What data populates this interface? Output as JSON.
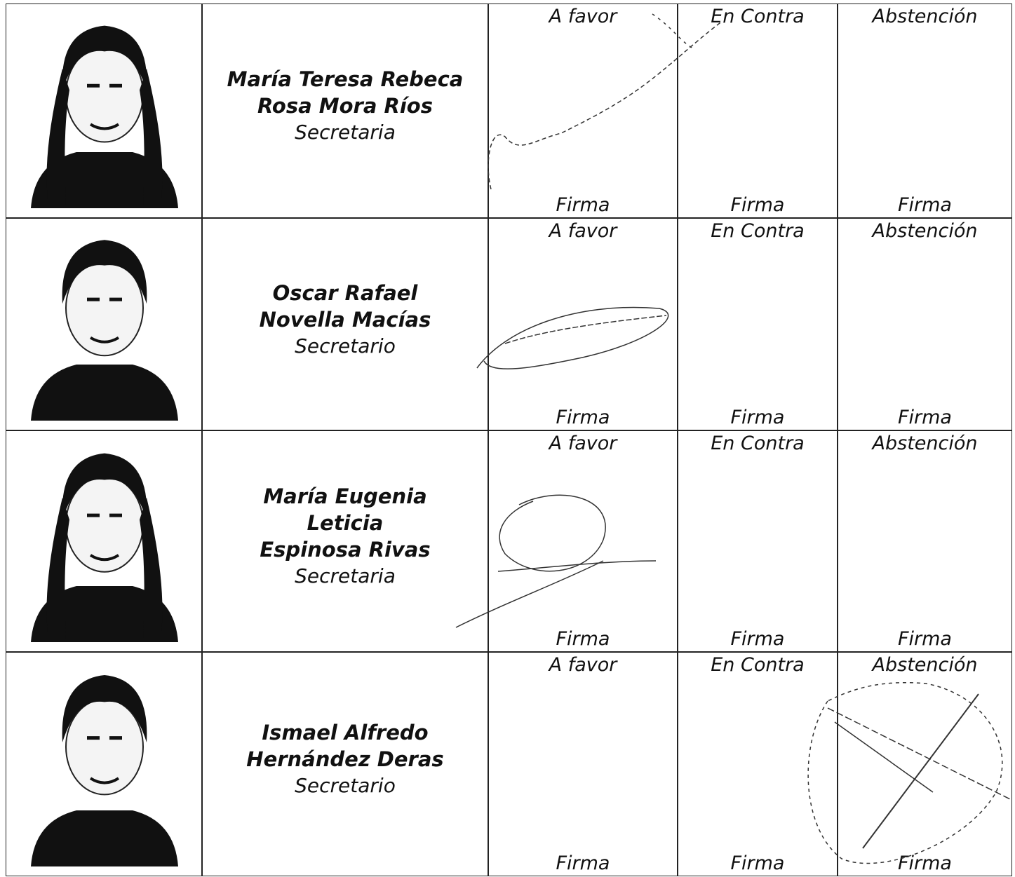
{
  "table": {
    "rows": [
      {
        "name_lines": [
          "María Teresa Rebeca",
          "Rosa Mora Ríos"
        ],
        "role": "Secretaria",
        "votes": [
          {
            "label": "A favor",
            "sign": "Firma"
          },
          {
            "label": "En Contra",
            "sign": "Firma"
          },
          {
            "label": "Abstención",
            "sign": "Firma"
          }
        ]
      },
      {
        "name_lines": [
          "Oscar Rafael",
          "Novella Macías"
        ],
        "role": "Secretario",
        "votes": [
          {
            "label": "A favor",
            "sign": "Firma"
          },
          {
            "label": "En Contra",
            "sign": "Firma"
          },
          {
            "label": "Abstención",
            "sign": "Firma"
          }
        ]
      },
      {
        "name_lines": [
          "María Eugenia",
          "Leticia",
          "Espinosa Rivas"
        ],
        "role": "Secretaria",
        "votes": [
          {
            "label": "A favor",
            "sign": "Firma"
          },
          {
            "label": "En Contra",
            "sign": "Firma"
          },
          {
            "label": "Abstención",
            "sign": "Firma"
          }
        ]
      },
      {
        "name_lines": [
          "Ismael Alfredo",
          "Hernández Deras"
        ],
        "role": "Secretario",
        "votes": [
          {
            "label": "A favor",
            "sign": "Firma"
          },
          {
            "label": "En Contra",
            "sign": "Firma"
          },
          {
            "label": "Abstención",
            "sign": "Firma"
          }
        ]
      }
    ]
  }
}
